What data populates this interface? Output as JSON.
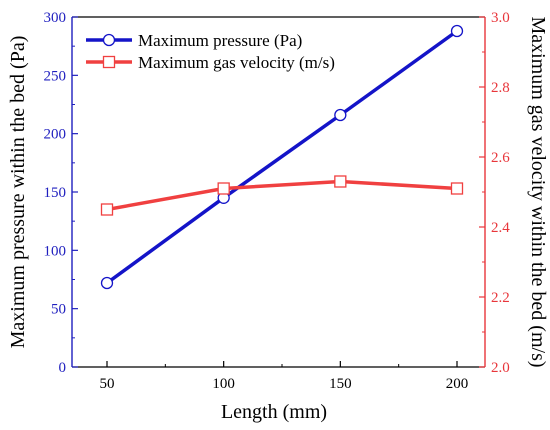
{
  "chart_data": {
    "type": "line",
    "x": [
      50,
      100,
      150,
      200
    ],
    "xlabel": "Length (mm)",
    "xlim": [
      35,
      212
    ],
    "xticks": [
      50,
      100,
      150,
      200
    ],
    "y_left": {
      "label": "Maximum pressure within the bed (Pa)",
      "lim": [
        0,
        300
      ],
      "ticks": [
        0,
        50,
        100,
        150,
        200,
        250,
        300
      ],
      "color": "#1f1fbf"
    },
    "y_right": {
      "label": "Maximum gas velocity within the bed (m/s)",
      "lim": [
        2.0,
        3.0
      ],
      "ticks": [
        "2.0",
        "2.2",
        "2.4",
        "2.6",
        "2.8",
        "3.0"
      ],
      "color": "#e8363b"
    },
    "series": [
      {
        "name": "Maximum pressure (Pa)",
        "axis": "left",
        "color": "#1414c8",
        "marker": "circle",
        "values": [
          72,
          145,
          216,
          288
        ]
      },
      {
        "name": "Maximum gas velocity (m/s)",
        "axis": "right",
        "color": "#f04040",
        "marker": "square",
        "values": [
          2.45,
          2.51,
          2.53,
          2.51
        ]
      }
    ],
    "legend_position": "top-left",
    "grid": false
  }
}
